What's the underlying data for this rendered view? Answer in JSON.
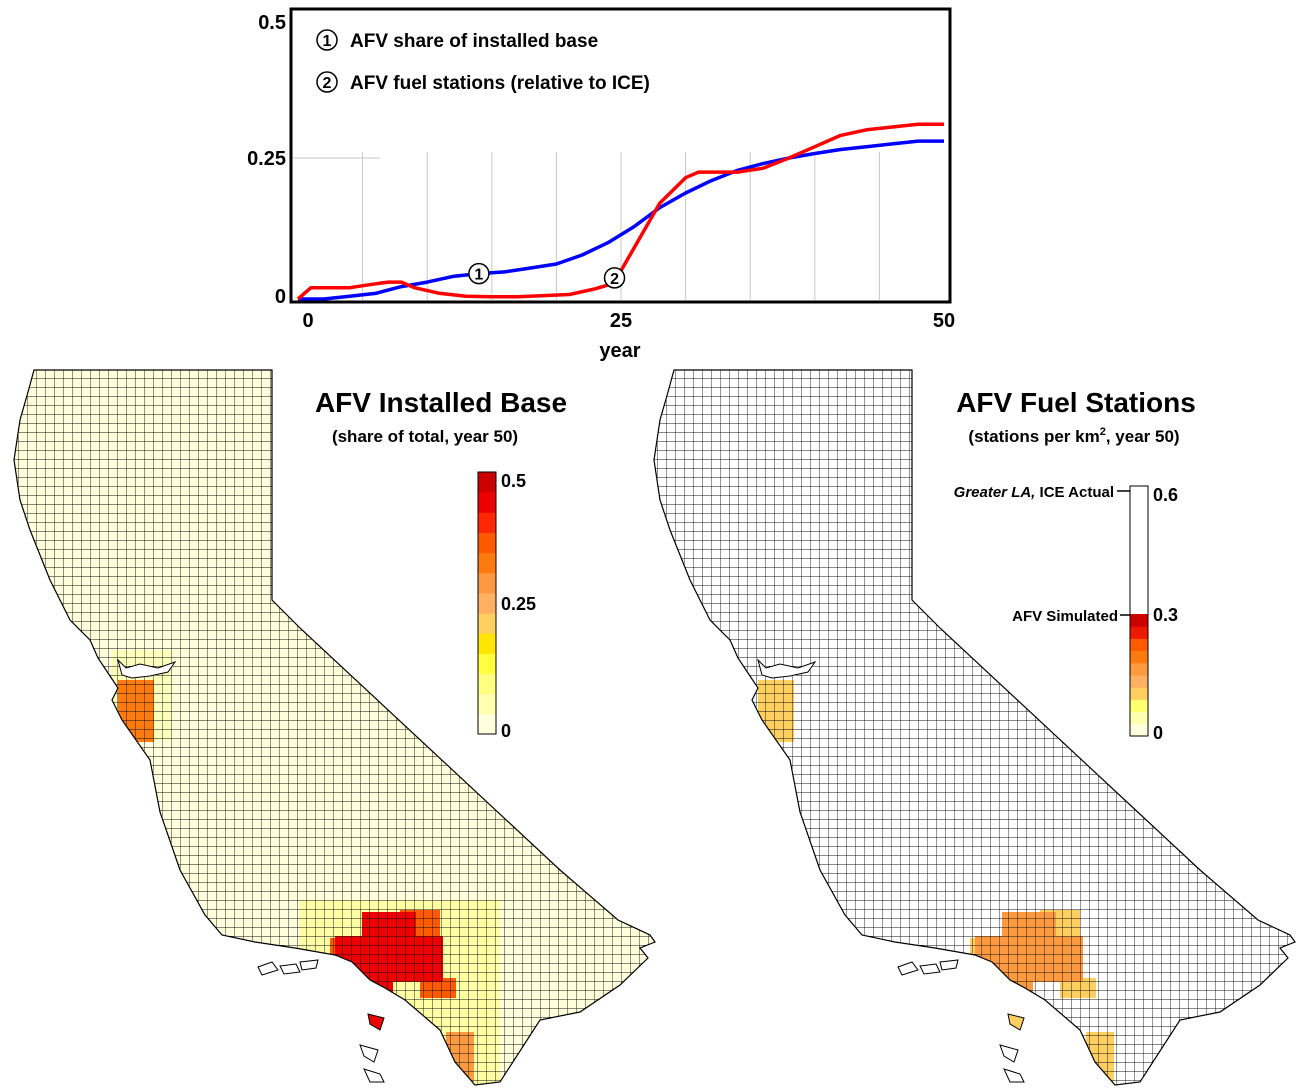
{
  "chart_data": [
    {
      "type": "line",
      "title": "",
      "xlabel": "year",
      "ylabel": "",
      "xlim": [
        0,
        50
      ],
      "ylim": [
        0,
        0.5
      ],
      "x_ticks": [
        "0",
        "25",
        "50"
      ],
      "y_ticks": [
        "0",
        "0.25",
        "0.5"
      ],
      "grid": "vertical",
      "legend": "top-left",
      "series": [
        {
          "name": "AFV share of installed base",
          "marker": "1",
          "color": "#0000ff",
          "x": [
            0,
            2,
            4,
            6,
            8,
            10,
            12,
            14,
            16,
            18,
            20,
            22,
            24,
            26,
            28,
            30,
            32,
            34,
            36,
            38,
            40,
            42,
            44,
            46,
            48,
            50
          ],
          "y": [
            0.0,
            0.0,
            0.005,
            0.01,
            0.022,
            0.03,
            0.04,
            0.045,
            0.048,
            0.055,
            0.062,
            0.078,
            0.1,
            0.128,
            0.162,
            0.188,
            0.21,
            0.228,
            0.24,
            0.25,
            0.258,
            0.265,
            0.27,
            0.275,
            0.28,
            0.28
          ]
        },
        {
          "name": "AFV fuel stations (relative to ICE)",
          "marker": "2",
          "color": "#ff0000",
          "x": [
            0,
            1,
            2,
            4,
            6,
            7,
            8,
            9,
            11,
            13,
            15,
            17,
            19,
            21,
            23,
            24,
            25,
            26,
            28,
            30,
            31,
            32,
            34,
            36,
            38,
            40,
            42,
            44,
            46,
            48,
            50
          ],
          "y": [
            0.0,
            0.02,
            0.02,
            0.02,
            0.027,
            0.03,
            0.03,
            0.02,
            0.01,
            0.005,
            0.004,
            0.004,
            0.006,
            0.008,
            0.018,
            0.025,
            0.05,
            0.09,
            0.17,
            0.215,
            0.225,
            0.225,
            0.225,
            0.232,
            0.25,
            0.27,
            0.29,
            0.3,
            0.305,
            0.31,
            0.31
          ]
        }
      ]
    },
    {
      "type": "heatmap",
      "title": "AFV Installed Base",
      "subtitle": "(share of total, year 50)",
      "colorbar": {
        "range": [
          0,
          0.5
        ],
        "ticks": [
          "0",
          "0.25",
          "0.5"
        ],
        "colors": [
          "#ffffdd",
          "#ffffb0",
          "#ffff80",
          "#ffff40",
          "#ffe600",
          "#ffd060",
          "#ffb060",
          "#ff9a40",
          "#ff7b10",
          "#ff5a00",
          "#ff2800",
          "#ee0000",
          "#cc0000"
        ]
      },
      "hotspots": [
        {
          "region": "bay-area",
          "level": 0.32
        },
        {
          "region": "greater-la",
          "level": 0.46
        },
        {
          "region": "la-outer",
          "level": 0.36
        },
        {
          "region": "san-diego",
          "level": 0.3
        }
      ]
    },
    {
      "type": "heatmap",
      "title": "AFV Fuel Stations",
      "subtitle_prefix": "(stations per km",
      "subtitle_sup": "2",
      "subtitle_suffix": ", year 50)",
      "colorbar": {
        "range": [
          0,
          0.6
        ],
        "ticks": [
          "0",
          "0.3",
          "0.6"
        ],
        "colors": [
          "#ffffdd",
          "#ffffb0",
          "#ffff70",
          "#ffd060",
          "#ffb060",
          "#ff9a40",
          "#ff7b10",
          "#ff5a00",
          "#ee1a00",
          "#cc0000"
        ]
      },
      "reference_labels": {
        "top_italic": "Greater LA,",
        "top_rest": " ICE Actual",
        "middle": "AFV Simulated"
      },
      "hotspots": [
        {
          "region": "bay-area",
          "level": 0.18
        },
        {
          "region": "greater-la",
          "level": 0.3
        },
        {
          "region": "la-outer",
          "level": 0.22
        },
        {
          "region": "san-diego",
          "level": 0.17
        }
      ]
    }
  ]
}
